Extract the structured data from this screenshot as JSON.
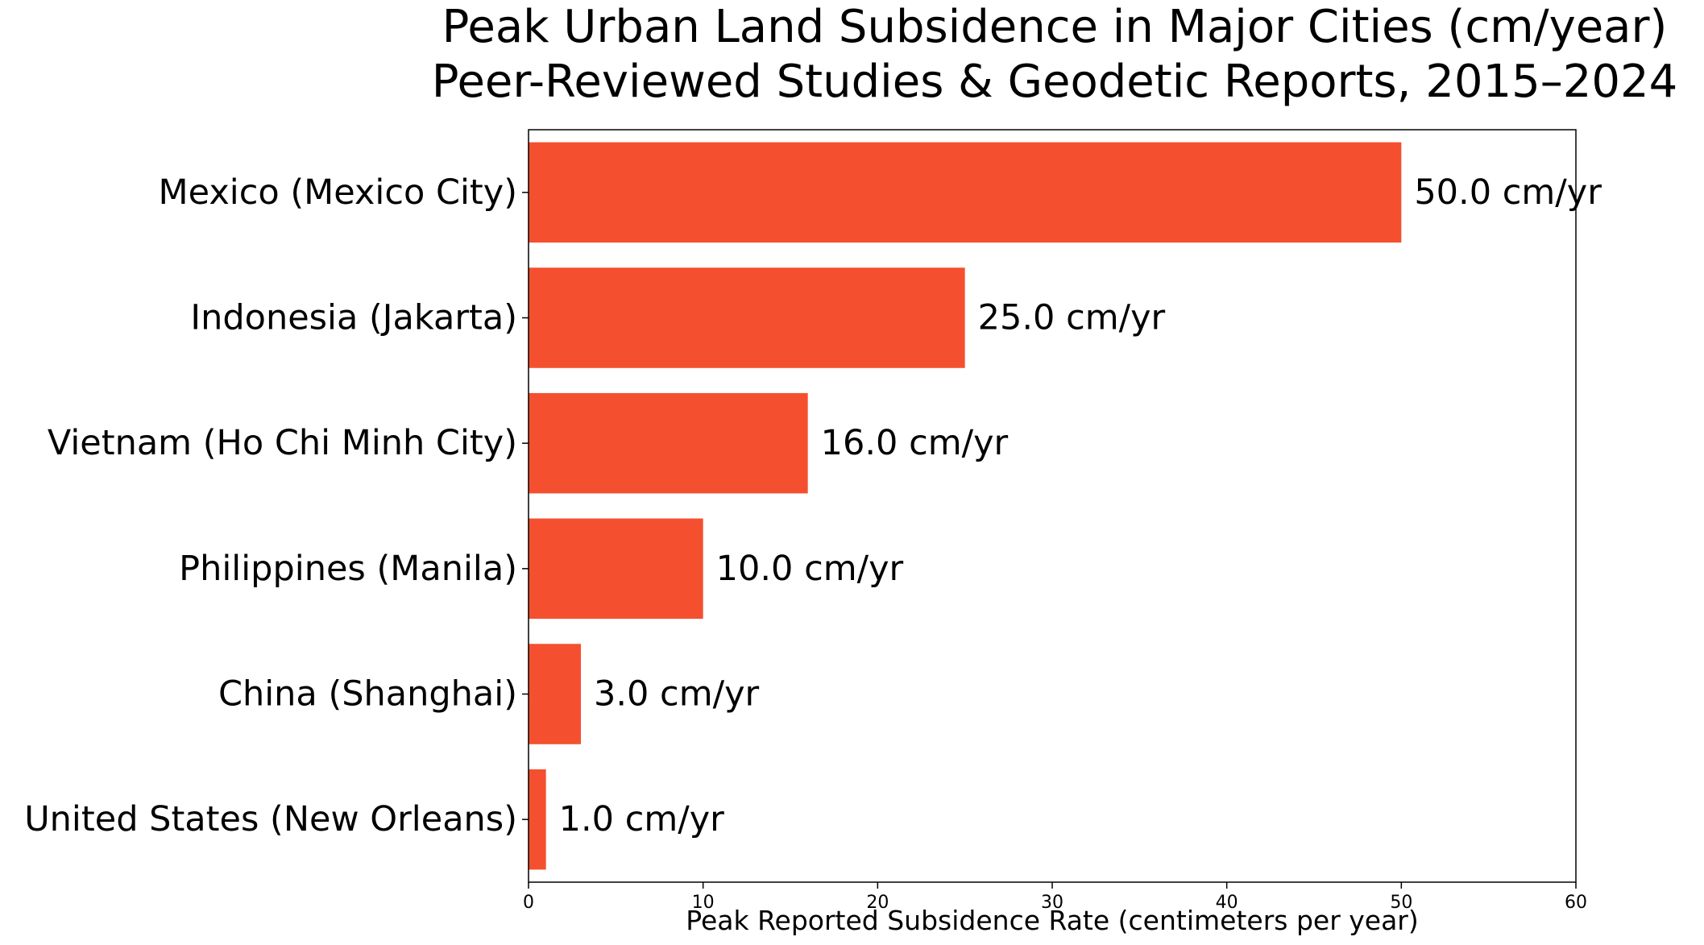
{
  "chart_data": {
    "type": "bar",
    "orientation": "horizontal",
    "title": "Peak Urban Land Subsidence in Major Cities (cm/year)",
    "subtitle": "Peer-Reviewed Studies & Geodetic Reports, 2015–2024",
    "xlabel": "Peak Reported Subsidence Rate (centimeters per year)",
    "ylabel": "",
    "xlim": [
      0,
      60
    ],
    "xticks": [
      0,
      10,
      20,
      30,
      40,
      50,
      60
    ],
    "categories": [
      "Mexico (Mexico City)",
      "Indonesia (Jakarta)",
      "Vietnam (Ho Chi Minh City)",
      "Philippines (Manila)",
      "China (Shanghai)",
      "United States (New Orleans)"
    ],
    "values": [
      50.0,
      25.0,
      16.0,
      10.0,
      3.0,
      1.0
    ],
    "value_labels": [
      "50.0 cm/yr",
      "25.0 cm/yr",
      "16.0 cm/yr",
      "10.0 cm/yr",
      "3.0 cm/yr",
      "1.0 cm/yr"
    ],
    "bar_color": "#f4502f",
    "grid": false,
    "legend": "none"
  }
}
